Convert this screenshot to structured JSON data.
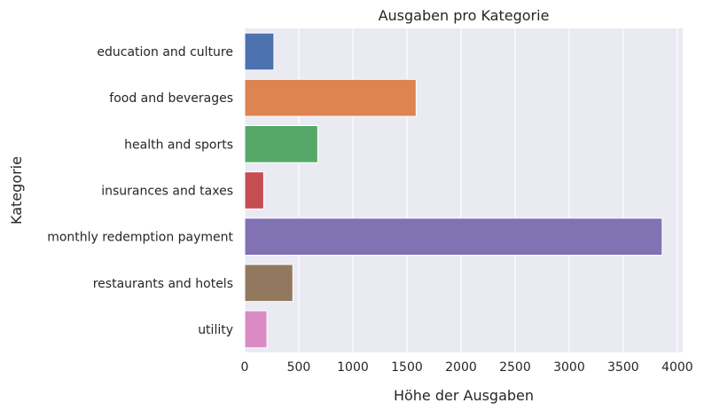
{
  "chart_data": {
    "type": "bar",
    "orientation": "horizontal",
    "title": "Ausgaben pro Kategorie",
    "xlabel": "Höhe der Ausgaben",
    "ylabel": "Kategorie",
    "xlim": [
      0,
      4050
    ],
    "xticks": [
      "0",
      "500",
      "1000",
      "1500",
      "2000",
      "2500",
      "3000",
      "3500",
      "4000"
    ],
    "grid": true,
    "background": "#eaeaf2",
    "categories": [
      "education and culture",
      "food and beverages",
      "health and sports",
      "insurances and taxes",
      "monthly redemption payment",
      "restaurants and hotels",
      "utility"
    ],
    "values": [
      270,
      1585,
      675,
      175,
      3860,
      445,
      205
    ],
    "colors": [
      "#4c72b0",
      "#dd8452",
      "#55a868",
      "#c44e52",
      "#8172b3",
      "#937860",
      "#da8bc3"
    ]
  }
}
